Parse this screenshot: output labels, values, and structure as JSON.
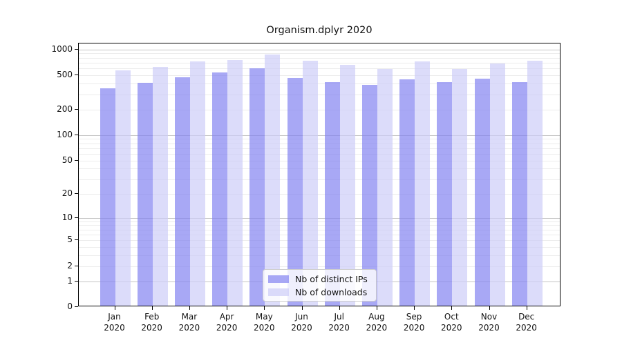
{
  "chart_data": {
    "type": "bar",
    "title": "Organism.dplyr 2020",
    "x_tick_months": [
      "Jan",
      "Feb",
      "Mar",
      "Apr",
      "May",
      "Jun",
      "Jul",
      "Aug",
      "Sep",
      "Oct",
      "Nov",
      "Dec"
    ],
    "x_tick_year": "2020",
    "y_ticks": [
      1000,
      500,
      200,
      100,
      50,
      20,
      10,
      5,
      2,
      1,
      0
    ],
    "y_scale": "log1p",
    "ylim": [
      0,
      1175
    ],
    "grid": "on",
    "legend_position": "inside-bottom-center",
    "series": [
      {
        "name": "Nb of distinct IPs",
        "color_hex": "#8383f1",
        "opacity": 0.7,
        "values": [
          350,
          410,
          475,
          540,
          600,
          470,
          420,
          390,
          445,
          420,
          455,
          420
        ]
      },
      {
        "name": "Nb of downloads",
        "color_hex": "#cdcdf8",
        "opacity": 0.7,
        "values": [
          575,
          625,
          730,
          760,
          875,
          745,
          660,
          595,
          730,
          595,
          685,
          735
        ]
      }
    ]
  },
  "style": {
    "background": "#ffffff",
    "axis_color": "#000000",
    "text_color": "#111111",
    "major_grid_color": "#c4c4c4",
    "minor_grid_color": "#ececec",
    "legend_border": "#cccccc"
  }
}
